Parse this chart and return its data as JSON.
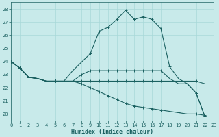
{
  "xlabel": "Humidex (Indice chaleur)",
  "bg_color": "#c8eaea",
  "grid_color": "#a8d8d8",
  "line_color": "#1a6060",
  "xlim": [
    0,
    23
  ],
  "ylim": [
    19.5,
    28.5
  ],
  "xticks": [
    0,
    1,
    2,
    3,
    4,
    5,
    6,
    7,
    8,
    9,
    10,
    11,
    12,
    13,
    14,
    15,
    16,
    17,
    18,
    19,
    20,
    21,
    22,
    23
  ],
  "yticks": [
    20,
    21,
    22,
    23,
    24,
    25,
    26,
    27,
    28
  ],
  "line1_x": [
    0,
    1,
    2,
    3,
    4,
    5,
    6,
    7,
    9,
    10,
    11,
    12,
    13,
    14,
    15,
    16,
    17,
    18,
    19,
    20,
    21,
    22
  ],
  "line1_y": [
    24.0,
    23.5,
    22.8,
    22.7,
    22.5,
    22.5,
    22.5,
    23.3,
    24.6,
    26.3,
    26.6,
    27.2,
    27.9,
    27.2,
    27.4,
    27.2,
    26.5,
    23.6,
    22.7,
    22.3,
    21.6,
    19.8
  ],
  "line2_x": [
    0,
    1,
    2,
    3,
    4,
    5,
    6,
    7,
    8,
    9,
    10,
    11,
    12,
    13,
    14,
    15,
    16,
    17,
    18,
    19,
    20,
    21,
    22
  ],
  "line2_y": [
    24.0,
    23.5,
    22.8,
    22.7,
    22.5,
    22.5,
    22.5,
    22.5,
    23.0,
    23.3,
    23.3,
    23.3,
    23.3,
    23.3,
    23.3,
    23.3,
    23.3,
    23.3,
    22.7,
    22.3,
    22.3,
    21.6,
    19.8
  ],
  "line3_x": [
    0,
    1,
    2,
    3,
    4,
    5,
    6,
    7,
    8,
    9,
    10,
    11,
    12,
    13,
    14,
    15,
    16,
    17,
    18,
    19,
    20,
    21,
    22
  ],
  "line3_y": [
    24.0,
    23.5,
    22.8,
    22.7,
    22.5,
    22.5,
    22.5,
    22.5,
    22.5,
    22.5,
    22.5,
    22.5,
    22.5,
    22.5,
    22.5,
    22.5,
    22.5,
    22.5,
    22.5,
    22.5,
    22.5,
    22.5,
    22.3
  ],
  "line4_x": [
    0,
    1,
    2,
    3,
    4,
    5,
    6,
    7,
    8,
    9,
    10,
    11,
    12,
    13,
    14,
    15,
    16,
    17,
    18,
    19,
    20,
    21,
    22
  ],
  "line4_y": [
    24.0,
    23.5,
    22.8,
    22.7,
    22.5,
    22.5,
    22.5,
    22.5,
    22.3,
    22.0,
    21.7,
    21.4,
    21.1,
    20.8,
    20.6,
    20.5,
    20.4,
    20.3,
    20.2,
    20.1,
    20.0,
    20.0,
    19.9
  ]
}
